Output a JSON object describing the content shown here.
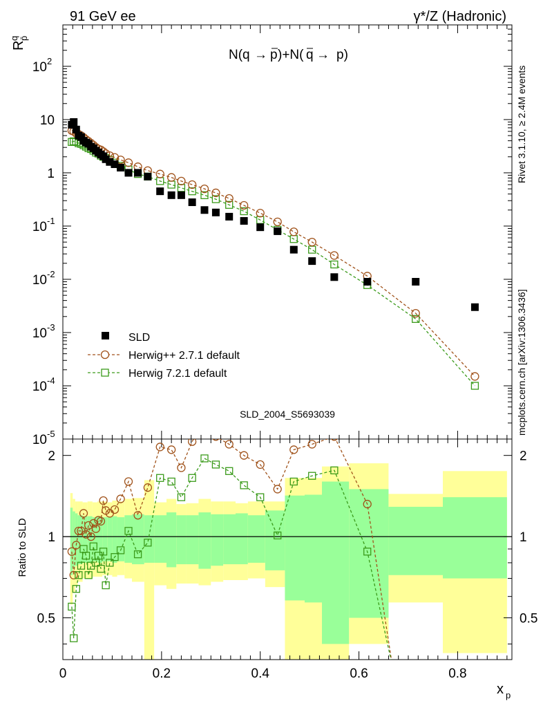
{
  "header": {
    "left": "91 GeV ee",
    "right": "γ*/Z (Hadronic)"
  },
  "side_labels": {
    "rivet": "Rivet 3.1.10, ≥ 2.4M events",
    "mcplots": "mcplots.cern.ch [arXiv:1306.3436]"
  },
  "watermark": "SLD_2004_S5693039",
  "chart_data": [
    {
      "panel": "main",
      "type": "scatter",
      "title": "N(q→p̄)+N(q̄→ p)",
      "xlabel": "x_p",
      "ylabel": "R_p^q",
      "xlim": [
        0,
        0.91
      ],
      "ylim": [
        1e-05,
        600
      ],
      "yscale": "log",
      "y_tick_labels": [
        "10^-5",
        "10^-4",
        "10^-3",
        "10^-2",
        "10^-1",
        "1",
        "10",
        "10^2"
      ],
      "legend_position": "lower-left",
      "colors": {
        "data": "#000000",
        "hpp": "#a0521a",
        "h7": "#3a9a1a"
      },
      "series": [
        {
          "name": "SLD",
          "style": "filled-square",
          "x": [
            0.018,
            0.022,
            0.027,
            0.032,
            0.037,
            0.042,
            0.047,
            0.052,
            0.057,
            0.062,
            0.067,
            0.072,
            0.077,
            0.082,
            0.087,
            0.095,
            0.105,
            0.117,
            0.133,
            0.152,
            0.172,
            0.197,
            0.22,
            0.24,
            0.262,
            0.287,
            0.31,
            0.337,
            0.367,
            0.4,
            0.435,
            0.468,
            0.505,
            0.55,
            0.617,
            0.715,
            0.835
          ],
          "y": [
            8,
            9,
            6.5,
            5,
            4.7,
            4,
            3.7,
            3.5,
            3.1,
            2.9,
            2.6,
            2.4,
            2.2,
            2.05,
            1.8,
            1.6,
            1.45,
            1.25,
            1.0,
            1.0,
            0.85,
            0.45,
            0.38,
            0.38,
            0.28,
            0.2,
            0.18,
            0.15,
            0.125,
            0.095,
            0.08,
            0.036,
            0.022,
            0.011,
            0.009,
            0.009,
            0.003
          ]
        },
        {
          "name": "Herwig++ 2.7.1 default",
          "style": "open-circle",
          "x": [
            0.018,
            0.022,
            0.027,
            0.032,
            0.037,
            0.042,
            0.047,
            0.052,
            0.057,
            0.062,
            0.067,
            0.072,
            0.077,
            0.082,
            0.087,
            0.095,
            0.105,
            0.117,
            0.133,
            0.152,
            0.172,
            0.197,
            0.22,
            0.24,
            0.262,
            0.287,
            0.31,
            0.337,
            0.367,
            0.4,
            0.435,
            0.468,
            0.505,
            0.55,
            0.617,
            0.715,
            0.835
          ],
          "y": [
            6.2,
            6,
            5.5,
            5.3,
            5,
            4.6,
            4.2,
            3.9,
            3.6,
            3.3,
            3.0,
            2.8,
            2.7,
            2.5,
            2.3,
            2.1,
            1.95,
            1.75,
            1.55,
            1.3,
            1.1,
            0.95,
            0.82,
            0.7,
            0.6,
            0.5,
            0.42,
            0.33,
            0.245,
            0.175,
            0.12,
            0.078,
            0.05,
            0.028,
            0.0115,
            0.0023,
            0.00015
          ]
        },
        {
          "name": "Herwig 7.2.1 default",
          "style": "open-square",
          "x": [
            0.018,
            0.022,
            0.027,
            0.032,
            0.037,
            0.042,
            0.047,
            0.052,
            0.057,
            0.062,
            0.067,
            0.072,
            0.077,
            0.082,
            0.087,
            0.095,
            0.105,
            0.117,
            0.133,
            0.152,
            0.172,
            0.197,
            0.22,
            0.24,
            0.262,
            0.287,
            0.31,
            0.337,
            0.367,
            0.4,
            0.435,
            0.468,
            0.505,
            0.55,
            0.617,
            0.715,
            0.835
          ],
          "y": [
            3.8,
            3.9,
            3.8,
            3.6,
            3.5,
            3.3,
            3.1,
            2.9,
            2.8,
            2.6,
            2.4,
            2.3,
            2.1,
            2.0,
            1.9,
            1.75,
            1.55,
            1.35,
            1.15,
            0.95,
            0.85,
            0.7,
            0.6,
            0.52,
            0.45,
            0.38,
            0.32,
            0.25,
            0.19,
            0.13,
            0.085,
            0.057,
            0.036,
            0.019,
            0.0078,
            0.0018,
            0.0001
          ]
        }
      ]
    },
    {
      "panel": "ratio",
      "type": "line",
      "ylabel": "Ratio to SLD",
      "xlabel": "x_p",
      "xlim": [
        0,
        0.91
      ],
      "ylim": [
        0.35,
        2.3
      ],
      "yscale": "log",
      "x_ticks": [
        0,
        0.2,
        0.4,
        0.6,
        0.8
      ],
      "y_ticks": [
        0.5,
        1,
        2
      ],
      "reference_line": 1,
      "colors": {
        "band_outer": "#ffff99",
        "band_inner": "#99ff99",
        "hpp": "#a0521a",
        "h7": "#3a9a1a"
      },
      "bands": [
        {
          "x0": 0.015,
          "x1": 0.02,
          "lo": 0.56,
          "hi": 1.45,
          "ilo": 0.72,
          "ihi": 1.28
        },
        {
          "x0": 0.02,
          "x1": 0.025,
          "lo": 0.62,
          "hi": 1.38,
          "ilo": 0.76,
          "ihi": 1.24
        },
        {
          "x0": 0.025,
          "x1": 0.03,
          "lo": 0.66,
          "hi": 1.35,
          "ilo": 0.78,
          "ihi": 1.22
        },
        {
          "x0": 0.03,
          "x1": 0.04,
          "lo": 0.68,
          "hi": 1.35,
          "ilo": 0.79,
          "ihi": 1.2
        },
        {
          "x0": 0.04,
          "x1": 0.05,
          "lo": 0.7,
          "hi": 1.34,
          "ilo": 0.8,
          "ihi": 1.19
        },
        {
          "x0": 0.05,
          "x1": 0.06,
          "lo": 0.7,
          "hi": 1.35,
          "ilo": 0.8,
          "ihi": 1.19
        },
        {
          "x0": 0.06,
          "x1": 0.07,
          "lo": 0.71,
          "hi": 1.34,
          "ilo": 0.81,
          "ihi": 1.18
        },
        {
          "x0": 0.07,
          "x1": 0.08,
          "lo": 0.71,
          "hi": 1.35,
          "ilo": 0.8,
          "ihi": 1.19
        },
        {
          "x0": 0.08,
          "x1": 0.09,
          "lo": 0.72,
          "hi": 1.35,
          "ilo": 0.81,
          "ihi": 1.18
        },
        {
          "x0": 0.09,
          "x1": 0.1,
          "lo": 0.72,
          "hi": 1.34,
          "ilo": 0.81,
          "ihi": 1.18
        },
        {
          "x0": 0.1,
          "x1": 0.11,
          "lo": 0.71,
          "hi": 1.36,
          "ilo": 0.8,
          "ihi": 1.19
        },
        {
          "x0": 0.11,
          "x1": 0.125,
          "lo": 0.72,
          "hi": 1.35,
          "ilo": 0.81,
          "ihi": 1.18
        },
        {
          "x0": 0.125,
          "x1": 0.14,
          "lo": 0.7,
          "hi": 1.38,
          "ilo": 0.8,
          "ihi": 1.2
        },
        {
          "x0": 0.14,
          "x1": 0.165,
          "lo": 0.68,
          "hi": 1.39,
          "ilo": 0.79,
          "ihi": 1.21
        },
        {
          "x0": 0.165,
          "x1": 0.185,
          "lo": 0.35,
          "hi": 1.62,
          "ilo": 0.8,
          "ihi": 1.2
        },
        {
          "x0": 0.185,
          "x1": 0.21,
          "lo": 0.66,
          "hi": 1.34,
          "ilo": 0.8,
          "ihi": 1.2
        },
        {
          "x0": 0.21,
          "x1": 0.23,
          "lo": 0.64,
          "hi": 1.38,
          "ilo": 0.77,
          "ihi": 1.23
        },
        {
          "x0": 0.23,
          "x1": 0.25,
          "lo": 0.67,
          "hi": 1.32,
          "ilo": 0.79,
          "ihi": 1.2
        },
        {
          "x0": 0.25,
          "x1": 0.275,
          "lo": 0.67,
          "hi": 1.33,
          "ilo": 0.79,
          "ihi": 1.2
        },
        {
          "x0": 0.275,
          "x1": 0.3,
          "lo": 0.66,
          "hi": 1.38,
          "ilo": 0.76,
          "ihi": 1.23
        },
        {
          "x0": 0.3,
          "x1": 0.325,
          "lo": 0.68,
          "hi": 1.35,
          "ilo": 0.78,
          "ihi": 1.21
        },
        {
          "x0": 0.325,
          "x1": 0.35,
          "lo": 0.69,
          "hi": 1.35,
          "ilo": 0.79,
          "ihi": 1.21
        },
        {
          "x0": 0.35,
          "x1": 0.375,
          "lo": 0.69,
          "hi": 1.33,
          "ilo": 0.79,
          "ihi": 1.22
        },
        {
          "x0": 0.375,
          "x1": 0.41,
          "lo": 0.7,
          "hi": 1.35,
          "ilo": 0.8,
          "ihi": 1.2
        },
        {
          "x0": 0.41,
          "x1": 0.45,
          "lo": 0.65,
          "hi": 1.35,
          "ilo": 0.75,
          "ihi": 1.25
        },
        {
          "x0": 0.45,
          "x1": 0.49,
          "lo": 0.35,
          "hi": 1.65,
          "ilo": 0.58,
          "ihi": 1.42
        },
        {
          "x0": 0.49,
          "x1": 0.525,
          "lo": 0.35,
          "hi": 1.65,
          "ilo": 0.57,
          "ihi": 1.43
        },
        {
          "x0": 0.525,
          "x1": 0.58,
          "lo": 0.35,
          "hi": 1.82,
          "ilo": 0.4,
          "ihi": 1.6
        },
        {
          "x0": 0.58,
          "x1": 0.66,
          "lo": 0.4,
          "hi": 1.87,
          "ilo": 0.5,
          "ihi": 1.5
        },
        {
          "x0": 0.66,
          "x1": 0.77,
          "lo": 0.57,
          "hi": 1.44,
          "ilo": 0.72,
          "ihi": 1.29
        },
        {
          "x0": 0.77,
          "x1": 0.9,
          "lo": 0.37,
          "hi": 1.75,
          "ilo": 0.7,
          "ihi": 1.4
        }
      ],
      "series": [
        {
          "name": "Herwig++ 2.7.1 default",
          "x": [
            0.018,
            0.022,
            0.027,
            0.032,
            0.037,
            0.042,
            0.047,
            0.052,
            0.057,
            0.062,
            0.067,
            0.072,
            0.077,
            0.082,
            0.087,
            0.095,
            0.105,
            0.117,
            0.133,
            0.152,
            0.172,
            0.197,
            0.22,
            0.24,
            0.262,
            0.287,
            0.31,
            0.337,
            0.367,
            0.4,
            0.435,
            0.468,
            0.505,
            0.55,
            0.617,
            0.668
          ],
          "y": [
            0.88,
            0.72,
            0.93,
            1.05,
            1.05,
            1.22,
            1.02,
            1.1,
            1.0,
            1.12,
            1.07,
            1.15,
            1.14,
            1.36,
            1.25,
            1.22,
            1.26,
            1.38,
            1.6,
            1.2,
            1.52,
            2.15,
            2.1,
            1.8,
            2.25,
            2.7,
            2.35,
            2.2,
            2.0,
            1.85,
            1.5,
            2.1,
            2.2,
            2.35,
            1.32,
            0.33
          ]
        },
        {
          "name": "Herwig 7.2.1 default",
          "x": [
            0.018,
            0.022,
            0.027,
            0.032,
            0.037,
            0.042,
            0.047,
            0.052,
            0.057,
            0.062,
            0.067,
            0.072,
            0.077,
            0.082,
            0.087,
            0.095,
            0.105,
            0.117,
            0.133,
            0.152,
            0.172,
            0.197,
            0.22,
            0.24,
            0.262,
            0.287,
            0.31,
            0.337,
            0.367,
            0.4,
            0.435,
            0.468,
            0.505,
            0.55,
            0.617,
            0.668
          ],
          "y": [
            0.55,
            0.42,
            0.64,
            0.72,
            0.78,
            0.9,
            0.85,
            0.72,
            0.78,
            0.92,
            0.8,
            0.85,
            0.76,
            0.88,
            0.66,
            0.8,
            0.84,
            0.89,
            1.05,
            0.86,
            0.95,
            1.65,
            1.6,
            1.4,
            1.65,
            1.95,
            1.85,
            1.75,
            1.55,
            1.4,
            1.01,
            1.6,
            1.68,
            1.76,
            0.88,
            0.33
          ]
        }
      ]
    }
  ],
  "legend": [
    {
      "label": "SLD"
    },
    {
      "label": "Herwig++ 2.7.1 default"
    },
    {
      "label": "Herwig 7.2.1 default"
    }
  ],
  "ratio_panel": {
    "ylabel": "Ratio to SLD"
  },
  "axes": {
    "x_label": "x",
    "x_label_sub": "p",
    "y_label": "R",
    "y_label_sup": "q",
    "y_label_sub": "p̄",
    "x_tick_labels": [
      "0",
      "0.2",
      "0.4",
      "0.6",
      "0.8"
    ],
    "ratio_tick_labels": [
      "0.5",
      "1",
      "2"
    ],
    "main_tick_exponents": [
      "-5",
      "-4",
      "-3",
      "-2",
      "-1",
      "",
      "",
      "2"
    ],
    "main_tick_mantissa": [
      "10",
      "10",
      "10",
      "10",
      "10",
      "1",
      "10",
      "10"
    ]
  },
  "plot_title_parts": {
    "n1": "N(q",
    "arrow": "→",
    "p": "p",
    "mid": ")+N(",
    "q": "q",
    "arrow2": "→",
    "end": "p)"
  }
}
